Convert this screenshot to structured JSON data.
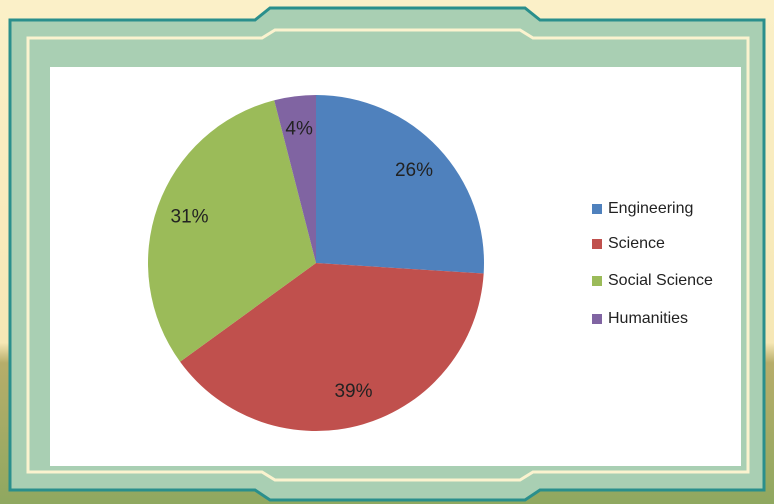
{
  "chart_data": {
    "type": "pie",
    "categories": [
      "Engineering",
      "Science",
      "Social Science",
      "Humanities"
    ],
    "values": [
      26,
      39,
      31,
      4
    ],
    "value_labels": [
      "26%",
      "39%",
      "31%",
      "4%"
    ],
    "colors": [
      "#4f81bd",
      "#c0504d",
      "#9bbb59",
      "#8064a2"
    ],
    "legend": "right"
  }
}
